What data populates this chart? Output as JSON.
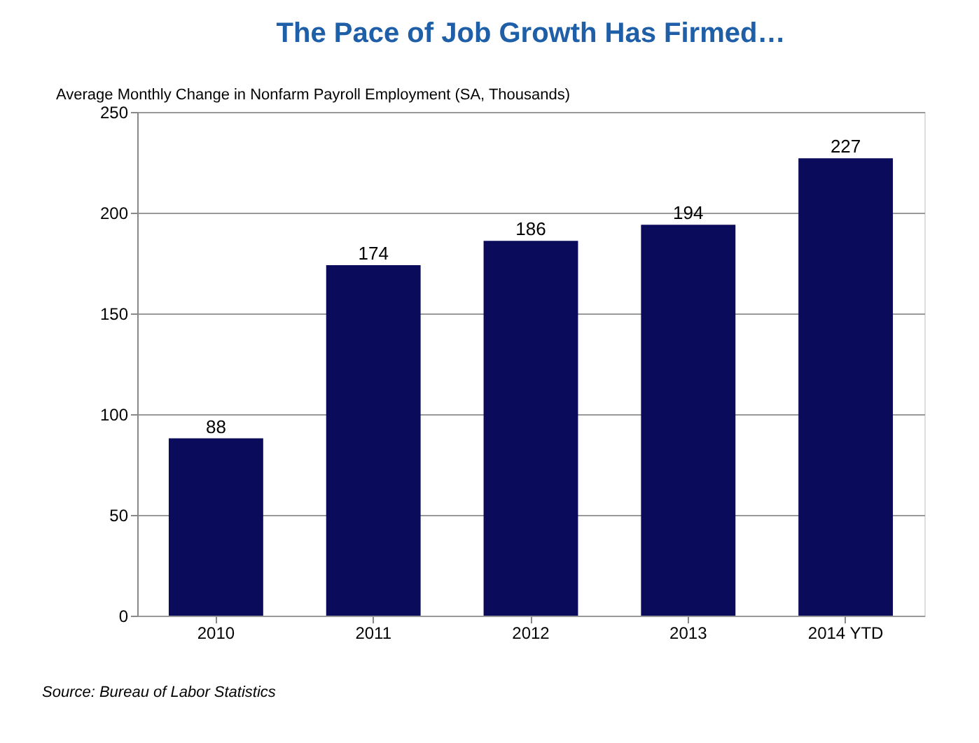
{
  "chart_data": {
    "type": "bar",
    "title": "The Pace of Job Growth Has Firmed…",
    "subtitle": "Average Monthly Change in Nonfarm Payroll Employment (SA, Thousands)",
    "categories": [
      "2010",
      "2011",
      "2012",
      "2013",
      "2014 YTD"
    ],
    "values": [
      88,
      174,
      186,
      194,
      227
    ],
    "color": "#0b0b5c",
    "ylim": [
      0,
      250
    ],
    "yticks": [
      0,
      50,
      100,
      150,
      200,
      250
    ],
    "grid": "y",
    "data_labels": true,
    "annotations": [
      "Source: Bureau of Labor Statistics"
    ]
  }
}
